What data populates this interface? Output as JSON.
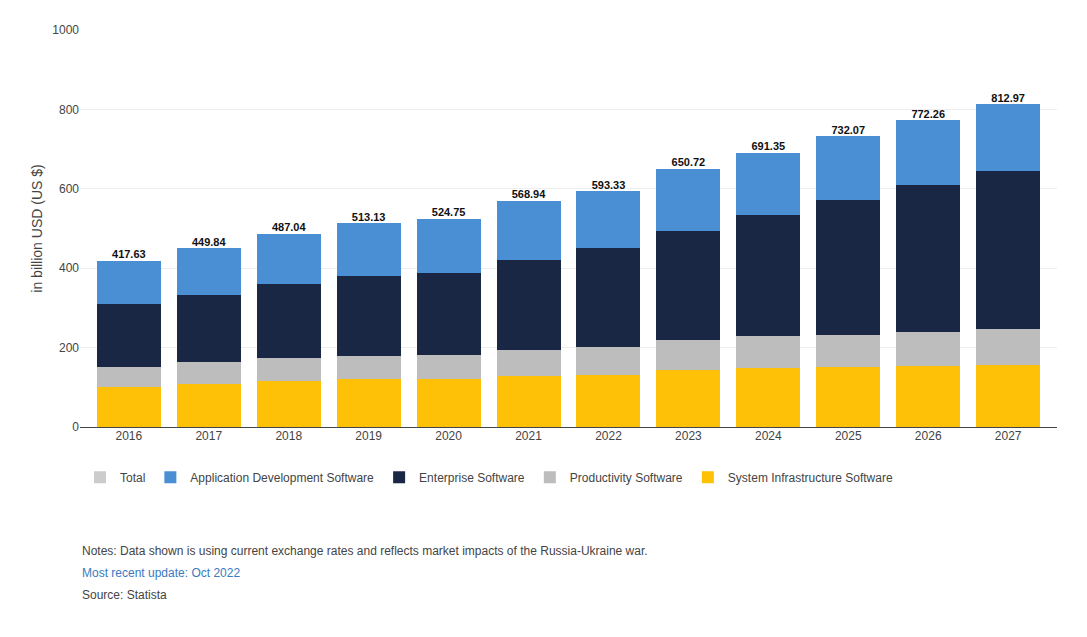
{
  "chart_data": {
    "type": "bar",
    "stacked": true,
    "categories": [
      "2016",
      "2017",
      "2018",
      "2019",
      "2020",
      "2021",
      "2022",
      "2023",
      "2024",
      "2025",
      "2026",
      "2027"
    ],
    "series": [
      {
        "name": "System Infrastructure Software",
        "color": "#FFC107",
        "values": [
          100,
          108,
          115,
          120,
          120,
          128,
          132,
          143,
          148,
          150,
          153,
          156
        ]
      },
      {
        "name": "Productivity Software",
        "color": "#BDBDBD",
        "values": [
          52,
          55,
          60,
          60,
          62,
          65,
          70,
          75,
          80,
          82,
          86,
          90
        ]
      },
      {
        "name": "Enterprise Software",
        "color": "#1A2744",
        "values": [
          158,
          170,
          185,
          200,
          205,
          228,
          248,
          275,
          305,
          340,
          370,
          400
        ]
      },
      {
        "name": "Application Development Software",
        "color": "#4A8FD4",
        "values": [
          107.63,
          116.84,
          127.04,
          133.13,
          137.75,
          147.94,
          143.33,
          157.72,
          158.35,
          160.07,
          163.26,
          166.97
        ]
      }
    ],
    "totals": {
      "name": "Total",
      "color": "#cccccc",
      "values": [
        417.63,
        449.84,
        487.04,
        513.13,
        524.75,
        568.94,
        593.33,
        650.72,
        691.35,
        732.07,
        772.26,
        812.97
      ]
    },
    "ylabel": "in billion USD (US $)",
    "ylim": [
      0,
      1000
    ],
    "yticks": [
      0,
      200,
      400,
      600,
      800,
      1000
    ],
    "grid": true,
    "legend": "bottom",
    "annotations": [
      {
        "text": "Notes: Data shown is using current exchange rates and reflects market impacts of the Russia-Ukraine war.",
        "color": "#444444"
      },
      {
        "text": "Most recent update: Oct 2022",
        "color": "#3a7abf"
      },
      {
        "text": "Source: Statista",
        "color": "#444444"
      }
    ]
  }
}
